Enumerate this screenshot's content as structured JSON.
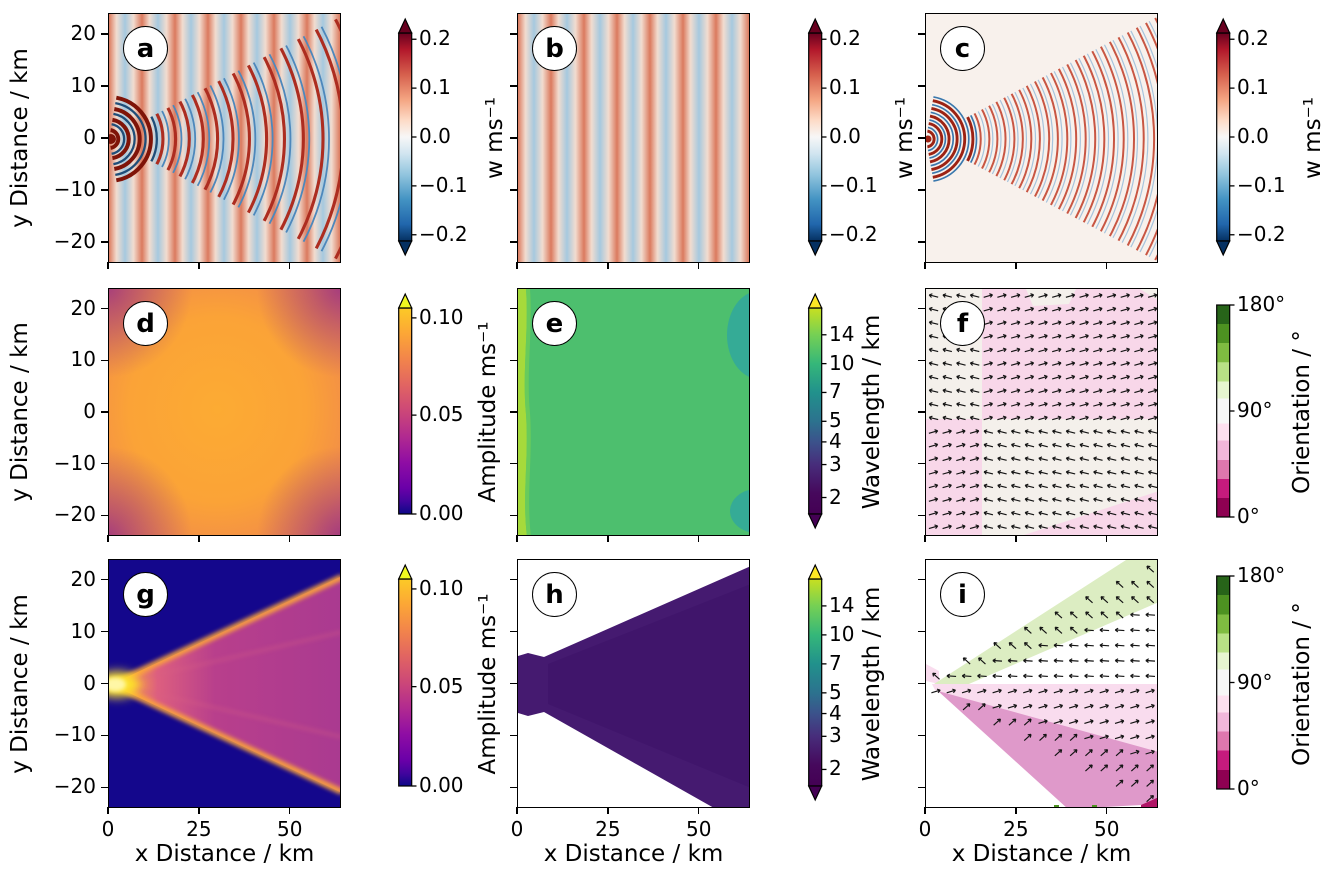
{
  "figure_title": "",
  "axis": {
    "x_label": "x Distance / km",
    "y_label": "y Distance / km",
    "x_ticks": [
      {
        "label": "0",
        "f": 0.0
      },
      {
        "label": "25",
        "f": 0.39
      },
      {
        "label": "50",
        "f": 0.78
      }
    ],
    "y_ticks": [
      {
        "label": "20",
        "f": 0.0833
      },
      {
        "label": "10",
        "f": 0.2917
      },
      {
        "label": "0",
        "f": 0.5
      },
      {
        "label": "−10",
        "f": 0.7083
      },
      {
        "label": "−20",
        "f": 0.9167
      }
    ]
  },
  "panels": [
    {
      "letter": "a",
      "row": 0,
      "col": 0,
      "cb": "w",
      "bg": "bands",
      "overlay": "arcsA"
    },
    {
      "letter": "b",
      "row": 0,
      "col": 1,
      "cb": "w",
      "bg": "bands",
      "overlay": ""
    },
    {
      "letter": "c",
      "row": 0,
      "col": 2,
      "cb": "w",
      "bg": "#f8f1ec",
      "overlay": "arcsC"
    },
    {
      "letter": "d",
      "row": 1,
      "col": 0,
      "cb": "amp",
      "bg": "plasma_radial",
      "overlay": ""
    },
    {
      "letter": "e",
      "row": 1,
      "col": 1,
      "cb": "wav",
      "bg": "#4dbf6e",
      "overlay": "viridis_patches"
    },
    {
      "letter": "f",
      "row": 1,
      "col": 2,
      "cb": "ori",
      "bg": "#f4f0eb",
      "overlay": "orient_checker"
    },
    {
      "letter": "g",
      "row": 2,
      "col": 0,
      "cb": "amp",
      "bg": "#14078c",
      "overlay": "plasma_fan"
    },
    {
      "letter": "h",
      "row": 2,
      "col": 1,
      "cb": "wav",
      "bg": "#ffffff",
      "overlay": "wav_wedge"
    },
    {
      "letter": "i",
      "row": 2,
      "col": 2,
      "cb": "ori",
      "bg": "#ffffff",
      "overlay": "orient_wedge"
    }
  ],
  "colorbars": {
    "w": {
      "label": "w ms⁻¹",
      "extend": "both",
      "label_dx": 97,
      "arrow_top": "#67001f",
      "arrow_bottom": "#053061",
      "stops": [
        [
          0,
          "#67001f"
        ],
        [
          0.08,
          "#b2182b"
        ],
        [
          0.2,
          "#d6604d"
        ],
        [
          0.32,
          "#f4a582"
        ],
        [
          0.42,
          "#fddbc7"
        ],
        [
          0.5,
          "#f7f7f7"
        ],
        [
          0.58,
          "#d1e5f0"
        ],
        [
          0.68,
          "#92c5de"
        ],
        [
          0.8,
          "#4393c3"
        ],
        [
          0.92,
          "#2166ac"
        ],
        [
          1,
          "#053061"
        ]
      ],
      "ticks": [
        {
          "t": "0.2",
          "f": 0.03
        },
        {
          "t": "0.1",
          "f": 0.265
        },
        {
          "t": "0.0",
          "f": 0.5
        },
        {
          "t": "−0.1",
          "f": 0.735
        },
        {
          "t": "−0.2",
          "f": 0.97
        }
      ]
    },
    "amp": {
      "label": "Amplitude ms⁻¹",
      "extend": "max",
      "label_dx": 90,
      "arrow_top": "#f0f921",
      "arrow_bottom": "#0d0887",
      "stops": [
        [
          0,
          "#fcca26"
        ],
        [
          0.125,
          "#fca636"
        ],
        [
          0.25,
          "#f2844b"
        ],
        [
          0.375,
          "#e16462"
        ],
        [
          0.5,
          "#cc4778"
        ],
        [
          0.625,
          "#b12a90"
        ],
        [
          0.75,
          "#8f0da4"
        ],
        [
          0.875,
          "#6a00a8"
        ],
        [
          0.94,
          "#41049d"
        ],
        [
          1,
          "#0d0887"
        ]
      ],
      "ticks": [
        {
          "t": "0.10",
          "f": 0.048
        },
        {
          "t": "0.05",
          "f": 0.52
        },
        {
          "t": "0.00",
          "f": 1.0
        }
      ]
    },
    "wav": {
      "label": "Wavelength / km",
      "extend": "both",
      "label_dx": 64,
      "arrow_top": "#fde725",
      "arrow_bottom": "#440154",
      "stops": [
        [
          0,
          "#c8e020"
        ],
        [
          0.13,
          "#75d054"
        ],
        [
          0.27,
          "#35b779"
        ],
        [
          0.41,
          "#21918c"
        ],
        [
          0.55,
          "#2c728e"
        ],
        [
          0.65,
          "#3b528b"
        ],
        [
          0.76,
          "#472d7b"
        ],
        [
          0.9,
          "#46085c"
        ],
        [
          1,
          "#440154"
        ]
      ],
      "ticks": [
        {
          "t": "14",
          "f": 0.13
        },
        {
          "t": "10",
          "f": 0.27
        },
        {
          "t": "7",
          "f": 0.41
        },
        {
          "t": "5",
          "f": 0.55
        },
        {
          "t": "4",
          "f": 0.65
        },
        {
          "t": "3",
          "f": 0.76
        },
        {
          "t": "2",
          "f": 0.92
        }
      ]
    },
    "ori": {
      "label": "Orientation / °",
      "extend": "none",
      "label_dx": 86,
      "arrow_top": "#276419",
      "arrow_bottom": "#8e0152",
      "stops": [
        [
          0,
          "#276419"
        ],
        [
          0.09,
          "#276419"
        ],
        [
          0.0901,
          "#4d9221"
        ],
        [
          0.18,
          "#4d9221"
        ],
        [
          0.1801,
          "#7fbc41"
        ],
        [
          0.27,
          "#7fbc41"
        ],
        [
          0.2701,
          "#b8e186"
        ],
        [
          0.36,
          "#b8e186"
        ],
        [
          0.3601,
          "#e6f5d0"
        ],
        [
          0.44,
          "#e6f5d0"
        ],
        [
          0.4401,
          "#f7f7f7"
        ],
        [
          0.56,
          "#f7f7f7"
        ],
        [
          0.5601,
          "#fde0ef"
        ],
        [
          0.64,
          "#fde0ef"
        ],
        [
          0.6401,
          "#f1b6da"
        ],
        [
          0.73,
          "#f1b6da"
        ],
        [
          0.7301,
          "#de77ae"
        ],
        [
          0.82,
          "#de77ae"
        ],
        [
          0.8201,
          "#c51b7d"
        ],
        [
          0.91,
          "#c51b7d"
        ],
        [
          0.9101,
          "#8e0152"
        ],
        [
          1,
          "#8e0152"
        ]
      ],
      "ticks": [
        {
          "t": "180°",
          "f": 0.0
        },
        {
          "t": "90°",
          "f": 0.5
        },
        {
          "t": "0°",
          "f": 1.0
        }
      ]
    }
  },
  "render": {
    "bands": {
      "red": "#db7a5e",
      "light": "#f2dccf",
      "blue": "#a6c9df",
      "period": 33
    },
    "arcsA": {
      "r0": 9,
      "step": 10,
      "grow": 0.05,
      "off": 6,
      "rmax": 330,
      "red": "#ad2d20",
      "blue": "#4d88bc",
      "redW": 3.1,
      "blueW": 1.8,
      "nearRed": "#7f1408",
      "nearBlue": "#1f4e79",
      "dot": 5
    },
    "arcsC": {
      "r0": 8,
      "step": 7.5,
      "grow": 0.012,
      "off": 3.8,
      "rmax": 340,
      "red": "#c85643",
      "blue": "#a6c4dd",
      "redW": 2.0,
      "blueW": 1.2,
      "nearRed": "#9c2213",
      "nearBlue": "#3a78ad",
      "dot": 3.5
    },
    "plasma_radial": {
      "center": "#fcab33",
      "mid": "#f18a4a",
      "outer": "#c04b87",
      "corner": "#8e219e"
    },
    "viridis_patches": {
      "base": "#4dbf6e",
      "strip": "#a6da3b",
      "strip2": "#72cf57",
      "teal": "#35ab96"
    },
    "orient_checker": {
      "bg": "#f4f0eb",
      "pink": "#f8d7e9",
      "split_x": 0.24,
      "split_y": 0.525,
      "angle_pink": -16,
      "angle_white": 194
    },
    "plasma_fan": {
      "bg": "#14078c",
      "edge_ray": "#fca53a",
      "inner_ray": "#d85f84",
      "glow": "#fde32a",
      "core": "#fff7a6",
      "midline": "#8f2099"
    },
    "wav_wedge": {
      "fill": "#451a70",
      "inner": "#3c1367"
    },
    "orient_wedge": {
      "green": "#dcedc2",
      "lightpink": "#f9dcee",
      "darkpink": "#df99ca",
      "corner": "#b01566",
      "angles": {
        "green": 222,
        "mid": 184,
        "lightpink": -17,
        "darkpink": -42
      }
    }
  },
  "chart_data": {
    "shared": {
      "x_axis": {
        "label": "x Distance / km",
        "range_km": [
          0,
          64
        ],
        "ticks": [
          0,
          25,
          50
        ]
      },
      "y_axis": {
        "label": "y Distance / km",
        "range_km": [
          -24,
          24
        ],
        "ticks": [
          20,
          10,
          0,
          -10,
          -20
        ]
      },
      "grid": false,
      "layout": "3x3 panels a-i, each with its own vertical colorbar on the right"
    },
    "panels": [
      {
        "panel": "a",
        "type": "heatmap",
        "colormap": "RdBu_r",
        "colorbar": {
          "label": "w ms⁻¹",
          "range": [
            -0.2,
            0.2
          ],
          "ticks": [
            0.2,
            0.1,
            0.0,
            -0.1,
            -0.2
          ],
          "extend": "both"
        },
        "description": "Total vertical velocity w: vertical plane-wave bands (wavelength ≈ 9 km in x) superposed with a fan of curved wave crests spreading from a point source at (0, 0)."
      },
      {
        "panel": "b",
        "type": "heatmap",
        "colormap": "RdBu_r",
        "colorbar": {
          "label": "w ms⁻¹",
          "range": [
            -0.2,
            0.2
          ],
          "ticks": [
            0.2,
            0.1,
            0.0,
            -0.1,
            -0.2
          ],
          "extend": "both"
        },
        "description": "Plane-wave component only: uniform alternating red/blue vertical bands, ~7 wave periods across 0–64 km."
      },
      {
        "panel": "c",
        "type": "heatmap",
        "colormap": "RdBu_r",
        "colorbar": {
          "label": "w ms⁻¹",
          "range": [
            -0.2,
            0.2
          ],
          "ticks": [
            0.2,
            0.1,
            0.0,
            -0.1,
            -0.2
          ],
          "extend": "both"
        },
        "description": "Point-source fan component only: nested arc-shaped crests of weak amplitude (|w| ≲ 0.1) confined to a wedge opening toward +x; near-zero background elsewhere."
      },
      {
        "panel": "d",
        "type": "heatmap",
        "colormap": "plasma",
        "colorbar": {
          "label": "Amplitude ms⁻¹",
          "range": [
            0,
            0.1
          ],
          "ticks": [
            0.1,
            0.05,
            0.0
          ],
          "extend": "max"
        },
        "description": "Wave amplitude of plane-wave field: smooth broad maximum ≈ 0.075 ms⁻¹ centered near (30, 0), decreasing to ≈ 0.03 ms⁻¹ at the domain corners."
      },
      {
        "panel": "e",
        "type": "heatmap",
        "colormap": "viridis (log scale)",
        "colorbar": {
          "label": "Wavelength / km",
          "range": [
            1.6,
            16
          ],
          "ticks": [
            14,
            10,
            7,
            5,
            4,
            3,
            2
          ],
          "scale": "log",
          "extend": "both"
        },
        "description": "Wavelength of plane-wave field: nearly uniform ≈ 12 km (green); ≈ 15 km strip at x ≈ 0; ≈ 9 km teal patches at the right-hand corners."
      },
      {
        "panel": "f",
        "type": "heatmap+quiver",
        "colormap": "PiYG (discrete)",
        "colorbar": {
          "label": "Orientation / °",
          "range": [
            0,
            180
          ],
          "ticks": [
            180,
            90,
            0
          ],
          "extend": "none"
        },
        "description": "Orientation of plane-wave field: ≈ 90° (white) with blocks slightly below 90° (pale pink) over the top-right and bottom-left quadrants; quiver arrows nearly horizontal with small tilts."
      },
      {
        "panel": "g",
        "type": "heatmap",
        "colormap": "plasma",
        "colorbar": {
          "label": "Amplitude ms⁻¹",
          "range": [
            0,
            0.1
          ],
          "ticks": [
            0.1,
            0.05,
            0.0
          ],
          "extend": "max"
        },
        "description": "Amplitude of fan component: bright source ≈ 0.1 ms⁻¹ at (0, 0); V-shaped arms of enhanced amplitude (≈ 0.06) along the wedge edges reaching (64, ±22); ≈ 0.04 inside the wedge; ≈ 0 (dark) outside."
      },
      {
        "panel": "h",
        "type": "heatmap",
        "colormap": "viridis (log scale)",
        "colorbar": {
          "label": "Wavelength / km",
          "range": [
            1.6,
            16
          ],
          "ticks": [
            14,
            10,
            7,
            5,
            4,
            3,
            2
          ],
          "scale": "log",
          "extend": "both"
        },
        "description": "Wavelength of fan component: ≈ 2 km (dark purple) everywhere inside the expanding wedge; undefined (white) outside."
      },
      {
        "panel": "i",
        "type": "heatmap+quiver",
        "colormap": "PiYG (discrete)",
        "colorbar": {
          "label": "Orientation / °",
          "range": [
            0,
            180
          ],
          "ticks": [
            180,
            90,
            0
          ],
          "extend": "none"
        },
        "description": "Orientation of fan component: ≈ 100–110° band (light green) along the upper wedge edge, ≈ 90° (white) core, ≈ 70–80° (pale pink) lower half and ≈ 50° band (dark pink) along the lower edge; arrows rotate across the wedge. Blank outside the wedge."
      }
    ]
  }
}
